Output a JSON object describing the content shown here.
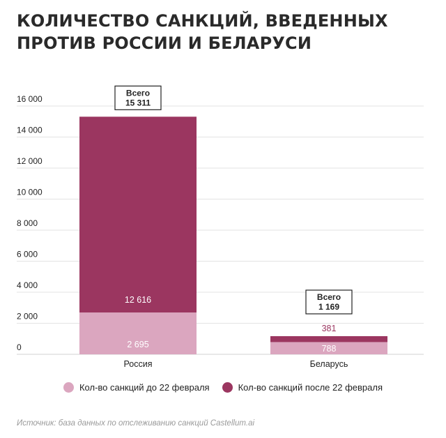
{
  "title_line1": "КОЛИЧЕСТВО САНКЦИЙ, ВВЕДЕННЫХ",
  "title_line2": "ПРОТИВ РОССИИ И БЕЛАРУСИ",
  "source": "Источник: база данных по отслеживанию санкций Castellum.ai",
  "colors": {
    "before": "#dba6bf",
    "after": "#9b3660"
  },
  "chart_data": {
    "type": "bar",
    "stacked": true,
    "categories": [
      "Россия",
      "Беларусь"
    ],
    "series": [
      {
        "name": "Кол-во санкций до 22 февраля",
        "values": [
          2695,
          788
        ],
        "labels": [
          "2 695",
          "788"
        ]
      },
      {
        "name": "Кол-во санкций после 22 февраля",
        "values": [
          12616,
          381
        ],
        "labels": [
          "12 616",
          "381"
        ]
      }
    ],
    "totals": [
      {
        "prefix": "Всего",
        "value": 15311,
        "label": "15 311"
      },
      {
        "prefix": "Всего",
        "value": 1169,
        "label": "1 169"
      }
    ],
    "ylim": [
      0,
      16000
    ],
    "yticks": [
      0,
      2000,
      4000,
      6000,
      8000,
      10000,
      12000,
      14000,
      16000
    ],
    "ytick_labels": [
      "0",
      "2 000",
      "4 000",
      "6 000",
      "8 000",
      "10 000",
      "12 000",
      "14 000",
      "16 000"
    ],
    "grid": true,
    "legend_position": "bottom"
  }
}
